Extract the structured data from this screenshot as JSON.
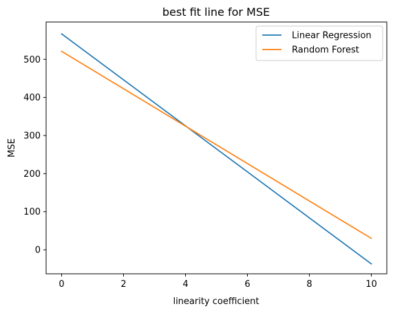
{
  "chart_data": {
    "type": "line",
    "title": "best fit line for MSE",
    "xlabel": "linearity coefficient",
    "ylabel": "MSE",
    "xlim": [
      -0.5,
      10.5
    ],
    "ylim": [
      -63,
      598
    ],
    "xticks": [
      0,
      2,
      4,
      6,
      8,
      10
    ],
    "yticks": [
      0,
      100,
      200,
      300,
      400,
      500
    ],
    "grid": false,
    "legend_position": "top-right",
    "series": [
      {
        "name": "Linear Regression",
        "color": "#1f77b4",
        "x": [
          0,
          10
        ],
        "y": [
          567,
          -37
        ]
      },
      {
        "name": "Random Forest",
        "color": "#ff7f0e",
        "x": [
          0,
          10
        ],
        "y": [
          521,
          30
        ]
      }
    ]
  }
}
